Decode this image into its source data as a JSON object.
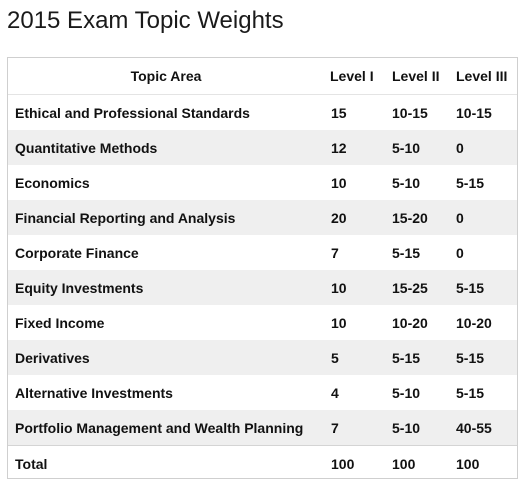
{
  "title": "2015 Exam Topic Weights",
  "table": {
    "headers": {
      "topic": "Topic Area",
      "level1": "Level I",
      "level2": "Level II",
      "level3": "Level III"
    },
    "rows": [
      {
        "topic": "Ethical and Professional Standards",
        "level1": "15",
        "level2": "10-15",
        "level3": "10-15"
      },
      {
        "topic": "Quantitative Methods",
        "level1": "12",
        "level2": "5-10",
        "level3": "0"
      },
      {
        "topic": "Economics",
        "level1": "10",
        "level2": "5-10",
        "level3": "5-15"
      },
      {
        "topic": "Financial Reporting and Analysis",
        "level1": "20",
        "level2": "15-20",
        "level3": "0"
      },
      {
        "topic": "Corporate Finance",
        "level1": "7",
        "level2": "5-15",
        "level3": "0"
      },
      {
        "topic": "Equity Investments",
        "level1": "10",
        "level2": "15-25",
        "level3": "5-15"
      },
      {
        "topic": "Fixed Income",
        "level1": "10",
        "level2": "10-20",
        "level3": "10-20"
      },
      {
        "topic": "Derivatives",
        "level1": "5",
        "level2": "5-15",
        "level3": "5-15"
      },
      {
        "topic": "Alternative Investments",
        "level1": "4",
        "level2": "5-10",
        "level3": "5-15"
      },
      {
        "topic": "Portfolio Management and Wealth Planning",
        "level1": "7",
        "level2": "5-10",
        "level3": "40-55"
      }
    ],
    "total": {
      "topic": "Total",
      "level1": "100",
      "level2": "100",
      "level3": "100"
    }
  },
  "colors": {
    "stripe": "#efefef",
    "border": "#cfcfcf",
    "text": "#111111"
  }
}
